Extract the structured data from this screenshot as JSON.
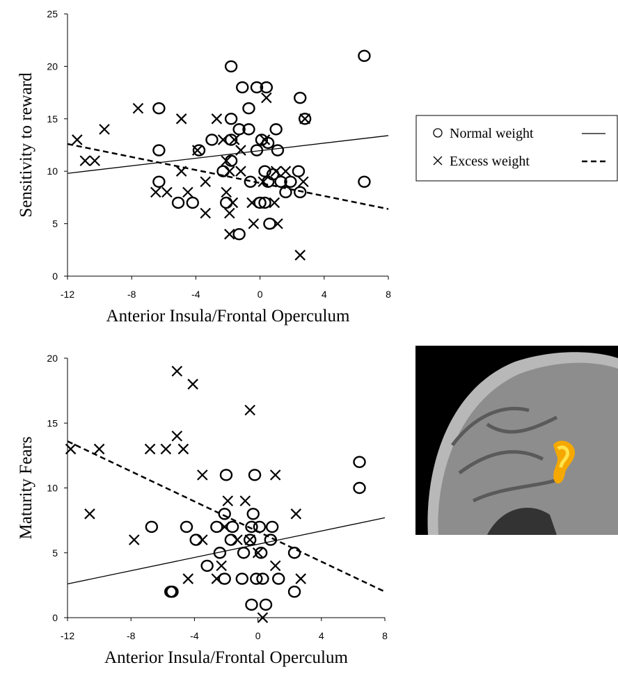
{
  "chart_data": [
    {
      "type": "scatter",
      "x_label": "Anterior Insula/Frontal Operculum",
      "y_label": "Sensitivity to reward",
      "xlim": [
        -12,
        8
      ],
      "xticks": [
        -12,
        -8,
        -4,
        0,
        4,
        8
      ],
      "ylim": [
        0,
        25
      ],
      "yticks": [
        0,
        5,
        10,
        15,
        20,
        25
      ],
      "legend": "right",
      "series": [
        {
          "name": "Normal weight",
          "marker": "circle",
          "line_style": "solid",
          "color": "#000000",
          "x": [
            -1.8,
            6.5,
            -1.1,
            -0.2,
            0.4,
            2.5,
            -0.7,
            -6.3,
            -1.8,
            2.8,
            -1.3,
            -0.7,
            1.0,
            -3.0,
            -1.8,
            0.1,
            0.5,
            -6.3,
            -3.8,
            -0.2,
            1.1,
            -1.8,
            -2.3,
            0.3,
            2.4,
            0.8,
            -6.3,
            -0.6,
            1.3,
            1.9,
            6.5,
            0.5,
            1.6,
            2.5,
            -5.1,
            -4.2,
            -2.1,
            0.0,
            0.3,
            0.6,
            -1.3
          ],
          "y": [
            20,
            21,
            18,
            18,
            18,
            17,
            16,
            16,
            15,
            15,
            14,
            14,
            14,
            13,
            13,
            13,
            12.7,
            12,
            12,
            12,
            12,
            11,
            10,
            10,
            10,
            9.7,
            9,
            9,
            9,
            9,
            9,
            9,
            8,
            8,
            7,
            7,
            7,
            7,
            7,
            5,
            4
          ],
          "fit": {
            "x": [
              -12,
              8
            ],
            "y": [
              9.8,
              13.4
            ]
          }
        },
        {
          "name": "Excess weight",
          "marker": "cross",
          "line_style": "dashed",
          "color": "#000000",
          "x": [
            -11.4,
            -10.9,
            -10.3,
            -9.7,
            -7.6,
            -4.9,
            -4.9,
            -3.9,
            -2.7,
            -2.3,
            -1.6,
            -2.1,
            -1.9,
            -1.2,
            -6.5,
            -5.8,
            -4.5,
            -3.4,
            -2.1,
            -1.7,
            -1.9,
            -3.4,
            -1.9,
            -0.4,
            -0.5,
            0.2,
            1.0,
            1.6,
            0.9,
            1.1,
            0.4,
            2.8,
            2.7,
            2.5,
            -1.2,
            0.3
          ],
          "y": [
            13,
            11,
            11,
            14,
            16,
            15,
            10,
            12,
            15,
            13,
            13,
            11,
            10,
            10,
            8,
            8,
            8,
            9,
            8,
            7,
            6,
            6,
            4,
            5,
            7,
            9,
            10,
            10,
            7,
            5,
            17,
            15,
            9,
            2,
            12,
            13
          ],
          "fit": {
            "x": [
              -12,
              8
            ],
            "y": [
              12.6,
              6.4
            ]
          }
        }
      ]
    },
    {
      "type": "scatter",
      "x_label": "Anterior Insula/Frontal Operculum",
      "y_label": "Maturity Fears",
      "xlim": [
        -12,
        8
      ],
      "xticks": [
        -12,
        -8,
        -4,
        0,
        4,
        8
      ],
      "ylim": [
        0,
        20
      ],
      "yticks": [
        0,
        5,
        10,
        15,
        20
      ],
      "series": [
        {
          "marker": "circle",
          "line_style": "solid",
          "color": "#000000",
          "x": [
            -5.5,
            -5.4,
            -6.7,
            -4.5,
            -3.9,
            -3.2,
            -2.6,
            -2.1,
            -2.0,
            -0.2,
            6.4,
            6.4,
            -1.6,
            -0.9,
            -0.3,
            -0.4,
            0.1,
            0.9,
            0.8,
            0.2,
            -0.5,
            -1.0,
            -0.1,
            0.3,
            1.3,
            -2.1,
            -0.4,
            0.5,
            2.3,
            2.3,
            -2.4,
            -1.7
          ],
          "y": [
            2,
            2,
            7,
            7,
            6,
            4,
            7,
            8,
            11,
            11,
            12,
            10,
            7,
            5,
            8,
            7,
            7,
            7,
            6,
            5,
            6,
            3,
            3,
            3,
            3,
            3,
            1,
            1,
            5,
            2,
            5,
            6
          ],
          "fit": {
            "x": [
              -12,
              8
            ],
            "y": [
              2.6,
              7.7
            ]
          }
        },
        {
          "marker": "cross",
          "line_style": "dashed",
          "color": "#000000",
          "x": [
            -11.8,
            -10.0,
            -10.6,
            -7.8,
            -6.8,
            -5.8,
            -4.7,
            -5.1,
            -5.1,
            -4.1,
            -0.5,
            -3.5,
            -3.5,
            -4.4,
            -1.9,
            -0.8,
            1.1,
            2.4,
            2.7,
            0.3,
            -2.1,
            -2.6,
            -0.5,
            -1.3,
            1.1,
            0.0,
            -2.3
          ],
          "y": [
            13,
            13,
            8,
            6,
            13,
            13,
            13,
            14,
            19,
            18,
            16,
            11,
            6,
            3,
            9,
            9,
            11,
            8,
            3,
            0,
            7,
            3,
            6,
            6,
            4,
            5,
            4
          ],
          "fit": {
            "x": [
              -12,
              8
            ],
            "y": [
              13.6,
              2.0
            ]
          }
        }
      ]
    }
  ]
}
